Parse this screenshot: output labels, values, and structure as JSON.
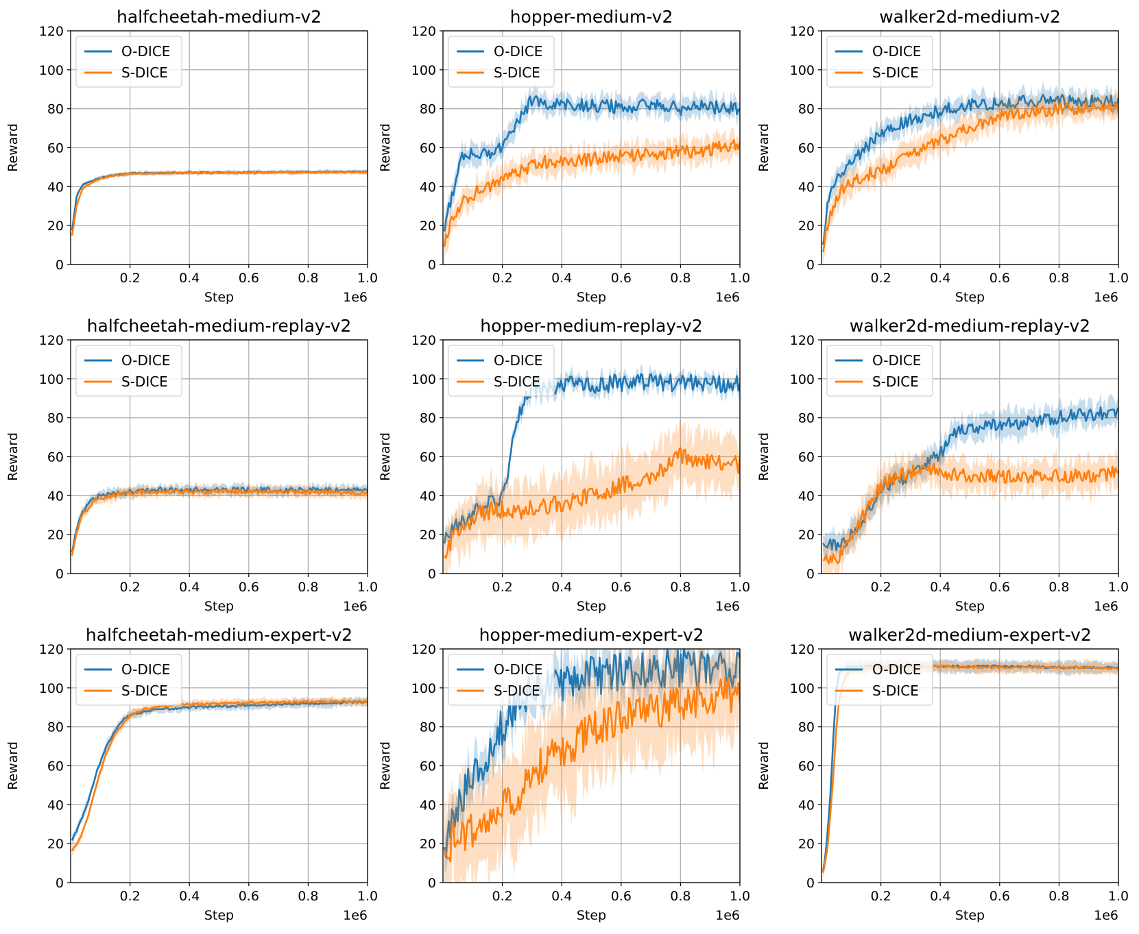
{
  "figure": {
    "colors": {
      "odice": "#1f77b4",
      "sdice": "#ff7f0e",
      "grid": "#b0b0b0"
    }
  },
  "chart_data": [
    {
      "type": "line",
      "title": "halfcheetah-medium-v2",
      "xlabel": "Step",
      "ylabel": "Reward",
      "x_multiplier": "1e6",
      "xlim": [
        0,
        1.0
      ],
      "ylim": [
        0,
        120
      ],
      "xticks": [
        "0.2",
        "0.4",
        "0.6",
        "0.8",
        "1.0"
      ],
      "yticks": [
        "0",
        "20",
        "40",
        "60",
        "80",
        "100",
        "120"
      ],
      "grid": true,
      "legend": "top-left",
      "noise_scale": 0.3,
      "series": [
        {
          "name": "O-DICE",
          "x": [
            0.0,
            0.02,
            0.04,
            0.07,
            0.1,
            0.15,
            0.2,
            0.3,
            0.4,
            0.5,
            0.6,
            0.7,
            0.8,
            0.9,
            1.0
          ],
          "y": [
            12,
            35,
            41,
            43,
            44.5,
            46,
            46.8,
            47,
            47.1,
            47.2,
            47.3,
            47.4,
            47.4,
            47.5,
            47.5
          ],
          "band": 1.0
        },
        {
          "name": "S-DICE",
          "x": [
            0.0,
            0.02,
            0.04,
            0.07,
            0.1,
            0.15,
            0.2,
            0.3,
            0.4,
            0.5,
            0.6,
            0.7,
            0.8,
            0.9,
            1.0
          ],
          "y": [
            10,
            30,
            39,
            42,
            44,
            45.8,
            46.5,
            46.9,
            47.0,
            47.1,
            47.2,
            47.3,
            47.3,
            47.4,
            47.4
          ],
          "band": 1.0
        }
      ]
    },
    {
      "type": "line",
      "title": "hopper-medium-v2",
      "xlabel": "Step",
      "ylabel": "Reward",
      "x_multiplier": "1e6",
      "xlim": [
        0,
        1.0
      ],
      "ylim": [
        0,
        120
      ],
      "xticks": [
        "0.2",
        "0.4",
        "0.6",
        "0.8",
        "1.0"
      ],
      "yticks": [
        "0",
        "20",
        "40",
        "60",
        "80",
        "100",
        "120"
      ],
      "grid": true,
      "legend": "top-left",
      "noise_scale": 3.5,
      "series": [
        {
          "name": "O-DICE",
          "x": [
            0.0,
            0.03,
            0.06,
            0.1,
            0.15,
            0.2,
            0.25,
            0.3,
            0.35,
            0.4,
            0.5,
            0.6,
            0.7,
            0.8,
            0.9,
            1.0
          ],
          "y": [
            15,
            35,
            55,
            58,
            57,
            60,
            72,
            85,
            82,
            83,
            82,
            81,
            82,
            80,
            81,
            80
          ],
          "band": 5
        },
        {
          "name": "S-DICE",
          "x": [
            0.0,
            0.03,
            0.06,
            0.1,
            0.15,
            0.2,
            0.25,
            0.3,
            0.35,
            0.4,
            0.5,
            0.6,
            0.7,
            0.8,
            0.9,
            1.0
          ],
          "y": [
            8,
            22,
            32,
            36,
            40,
            44,
            48,
            51,
            53,
            52,
            54,
            56,
            57,
            58,
            59,
            61
          ],
          "band": 6
        }
      ]
    },
    {
      "type": "line",
      "title": "walker2d-medium-v2",
      "xlabel": "Step",
      "ylabel": "Reward",
      "x_multiplier": "1e6",
      "xlim": [
        0,
        1.0
      ],
      "ylim": [
        0,
        120
      ],
      "xticks": [
        "0.2",
        "0.4",
        "0.6",
        "0.8",
        "1.0"
      ],
      "yticks": [
        "0",
        "20",
        "40",
        "60",
        "80",
        "100",
        "120"
      ],
      "grid": true,
      "legend": "top-left",
      "noise_scale": 3.2,
      "series": [
        {
          "name": "O-DICE",
          "x": [
            0.0,
            0.02,
            0.05,
            0.1,
            0.15,
            0.2,
            0.25,
            0.3,
            0.4,
            0.5,
            0.6,
            0.7,
            0.8,
            0.9,
            1.0
          ],
          "y": [
            5,
            30,
            45,
            52,
            60,
            68,
            72,
            74,
            79,
            82,
            83,
            84,
            84,
            84,
            84
          ],
          "band": 5
        },
        {
          "name": "S-DICE",
          "x": [
            0.0,
            0.02,
            0.05,
            0.1,
            0.15,
            0.2,
            0.25,
            0.3,
            0.4,
            0.5,
            0.6,
            0.7,
            0.8,
            0.9,
            1.0
          ],
          "y": [
            3,
            20,
            35,
            42,
            46,
            48,
            52,
            56,
            64,
            70,
            76,
            78,
            80,
            80,
            80
          ],
          "band": 6
        }
      ]
    },
    {
      "type": "line",
      "title": "halfcheetah-medium-replay-v2",
      "xlabel": "Step",
      "ylabel": "Reward",
      "x_multiplier": "1e6",
      "xlim": [
        0,
        1.0
      ],
      "ylim": [
        0,
        120
      ],
      "xticks": [
        "0.2",
        "0.4",
        "0.6",
        "0.8",
        "1.0"
      ],
      "yticks": [
        "0",
        "20",
        "40",
        "60",
        "80",
        "100",
        "120"
      ],
      "grid": true,
      "legend": "top-left",
      "noise_scale": 1.2,
      "series": [
        {
          "name": "O-DICE",
          "x": [
            0.0,
            0.02,
            0.04,
            0.07,
            0.1,
            0.15,
            0.2,
            0.3,
            0.4,
            0.5,
            0.6,
            0.7,
            0.8,
            0.9,
            1.0
          ],
          "y": [
            8,
            22,
            32,
            38,
            40,
            41,
            42,
            43,
            43,
            43,
            43,
            43,
            43,
            43,
            43
          ],
          "band": 2.5
        },
        {
          "name": "S-DICE",
          "x": [
            0.0,
            0.02,
            0.04,
            0.07,
            0.1,
            0.15,
            0.2,
            0.3,
            0.4,
            0.5,
            0.6,
            0.7,
            0.8,
            0.9,
            1.0
          ],
          "y": [
            6,
            20,
            30,
            36,
            39,
            40.5,
            41.5,
            42,
            42,
            42,
            42,
            42,
            42,
            42,
            41.5
          ],
          "band": 2.5
        }
      ]
    },
    {
      "type": "line",
      "title": "hopper-medium-replay-v2",
      "xlabel": "Step",
      "ylabel": "Reward",
      "x_multiplier": "1e6",
      "xlim": [
        0,
        1.0
      ],
      "ylim": [
        0,
        120
      ],
      "xticks": [
        "0.2",
        "0.4",
        "0.6",
        "0.8",
        "1.0"
      ],
      "yticks": [
        "0",
        "20",
        "40",
        "60",
        "80",
        "100",
        "120"
      ],
      "grid": true,
      "legend": "top-left",
      "noise_scale": 4.5,
      "series": [
        {
          "name": "O-DICE",
          "x": [
            0.0,
            0.03,
            0.06,
            0.1,
            0.15,
            0.2,
            0.22,
            0.25,
            0.28,
            0.3,
            0.35,
            0.4,
            0.5,
            0.6,
            0.7,
            0.8,
            0.9,
            1.0
          ],
          "y": [
            15,
            22,
            25,
            30,
            35,
            40,
            55,
            80,
            90,
            95,
            96,
            97,
            97,
            98,
            98,
            98,
            97,
            97
          ],
          "band": 4
        },
        {
          "name": "S-DICE",
          "x": [
            0.0,
            0.03,
            0.06,
            0.1,
            0.15,
            0.2,
            0.25,
            0.3,
            0.35,
            0.4,
            0.5,
            0.6,
            0.7,
            0.8,
            0.9,
            1.0
          ],
          "y": [
            8,
            18,
            24,
            28,
            32,
            33,
            32,
            33,
            35,
            36,
            40,
            45,
            50,
            60,
            58,
            56
          ],
          "band": 14
        }
      ]
    },
    {
      "type": "line",
      "title": "walker2d-medium-replay-v2",
      "xlabel": "Step",
      "ylabel": "Reward",
      "x_multiplier": "1e6",
      "xlim": [
        0,
        1.0
      ],
      "ylim": [
        0,
        120
      ],
      "xticks": [
        "0.2",
        "0.4",
        "0.6",
        "0.8",
        "1.0"
      ],
      "yticks": [
        "0",
        "20",
        "40",
        "60",
        "80",
        "100",
        "120"
      ],
      "grid": true,
      "legend": "top-left",
      "noise_scale": 3.5,
      "series": [
        {
          "name": "O-DICE",
          "x": [
            0.0,
            0.03,
            0.06,
            0.1,
            0.15,
            0.2,
            0.25,
            0.3,
            0.35,
            0.4,
            0.45,
            0.5,
            0.6,
            0.7,
            0.8,
            0.9,
            1.0
          ],
          "y": [
            16,
            15,
            14,
            20,
            30,
            42,
            48,
            50,
            55,
            62,
            72,
            75,
            76,
            78,
            80,
            82,
            82
          ],
          "band": 6
        },
        {
          "name": "S-DICE",
          "x": [
            0.0,
            0.03,
            0.06,
            0.1,
            0.15,
            0.2,
            0.25,
            0.3,
            0.35,
            0.4,
            0.5,
            0.6,
            0.7,
            0.8,
            0.9,
            1.0
          ],
          "y": [
            7,
            6,
            8,
            18,
            32,
            45,
            50,
            52,
            55,
            52,
            50,
            50,
            50,
            50,
            50,
            52
          ],
          "band": 8
        }
      ]
    },
    {
      "type": "line",
      "title": "halfcheetah-medium-expert-v2",
      "xlabel": "Step",
      "ylabel": "Reward",
      "x_multiplier": "1e6",
      "xlim": [
        0,
        1.0
      ],
      "ylim": [
        0,
        120
      ],
      "xticks": [
        "0.2",
        "0.4",
        "0.6",
        "0.8",
        "1.0"
      ],
      "yticks": [
        "0",
        "20",
        "40",
        "60",
        "80",
        "100",
        "120"
      ],
      "grid": true,
      "legend": "top-left",
      "noise_scale": 0.6,
      "series": [
        {
          "name": "O-DICE",
          "x": [
            0.0,
            0.03,
            0.06,
            0.09,
            0.12,
            0.15,
            0.18,
            0.2,
            0.25,
            0.3,
            0.4,
            0.5,
            0.6,
            0.7,
            0.8,
            0.9,
            1.0
          ],
          "y": [
            20,
            30,
            42,
            58,
            70,
            78,
            84,
            86,
            88,
            89,
            90,
            90.5,
            91,
            91.5,
            92,
            92.5,
            93
          ],
          "band": 2
        },
        {
          "name": "S-DICE",
          "x": [
            0.0,
            0.03,
            0.06,
            0.09,
            0.12,
            0.15,
            0.18,
            0.2,
            0.25,
            0.3,
            0.4,
            0.5,
            0.6,
            0.7,
            0.8,
            0.9,
            1.0
          ],
          "y": [
            15,
            22,
            35,
            52,
            66,
            76,
            82,
            86,
            89,
            90.5,
            91.5,
            92,
            92.5,
            92.5,
            92.8,
            93,
            93
          ],
          "band": 2
        }
      ]
    },
    {
      "type": "line",
      "title": "hopper-medium-expert-v2",
      "xlabel": "Step",
      "ylabel": "Reward",
      "x_multiplier": "1e6",
      "xlim": [
        0,
        1.0
      ],
      "ylim": [
        0,
        120
      ],
      "xticks": [
        "0.2",
        "0.4",
        "0.6",
        "0.8",
        "1.0"
      ],
      "yticks": [
        "0",
        "20",
        "40",
        "60",
        "80",
        "100",
        "120"
      ],
      "grid": true,
      "legend": "top-left",
      "noise_scale": 10,
      "series": [
        {
          "name": "O-DICE",
          "x": [
            0.0,
            0.05,
            0.1,
            0.15,
            0.2,
            0.25,
            0.3,
            0.35,
            0.4,
            0.5,
            0.6,
            0.7,
            0.8,
            0.9,
            1.0
          ],
          "y": [
            15,
            40,
            55,
            65,
            80,
            92,
            98,
            100,
            103,
            106,
            108,
            109,
            110,
            110,
            110
          ],
          "band": 10
        },
        {
          "name": "S-DICE",
          "x": [
            0.0,
            0.05,
            0.1,
            0.15,
            0.2,
            0.25,
            0.3,
            0.35,
            0.4,
            0.5,
            0.6,
            0.7,
            0.8,
            0.9,
            1.0
          ],
          "y": [
            15,
            25,
            28,
            30,
            38,
            45,
            55,
            62,
            68,
            78,
            85,
            88,
            92,
            95,
            98
          ],
          "band": 25
        }
      ]
    },
    {
      "type": "line",
      "title": "walker2d-medium-expert-v2",
      "xlabel": "Step",
      "ylabel": "Reward",
      "x_multiplier": "1e6",
      "xlim": [
        0,
        1.0
      ],
      "ylim": [
        0,
        120
      ],
      "xticks": [
        "0.2",
        "0.4",
        "0.6",
        "0.8",
        "1.0"
      ],
      "yticks": [
        "0",
        "20",
        "40",
        "60",
        "80",
        "100",
        "120"
      ],
      "grid": true,
      "legend": "top-left",
      "noise_scale": 0.6,
      "series": [
        {
          "name": "O-DICE",
          "x": [
            0.0,
            0.01,
            0.02,
            0.03,
            0.04,
            0.05,
            0.06,
            0.08,
            0.1,
            0.15,
            0.2,
            0.3,
            0.4,
            0.5,
            0.6,
            0.7,
            0.8,
            0.9,
            1.0
          ],
          "y": [
            2,
            10,
            25,
            45,
            75,
            100,
            108,
            110,
            111,
            111,
            111,
            111,
            111,
            111,
            111,
            111,
            110.5,
            110.5,
            110.5
          ],
          "band": 3
        },
        {
          "name": "S-DICE",
          "x": [
            0.0,
            0.01,
            0.02,
            0.03,
            0.04,
            0.05,
            0.06,
            0.08,
            0.1,
            0.15,
            0.2,
            0.3,
            0.4,
            0.5,
            0.6,
            0.7,
            0.8,
            0.9,
            1.0
          ],
          "y": [
            2,
            8,
            18,
            35,
            55,
            80,
            95,
            106,
            109,
            110,
            110.5,
            111,
            111,
            110.5,
            110.5,
            110.5,
            110.5,
            110.5,
            110
          ],
          "band": 3
        }
      ]
    }
  ]
}
